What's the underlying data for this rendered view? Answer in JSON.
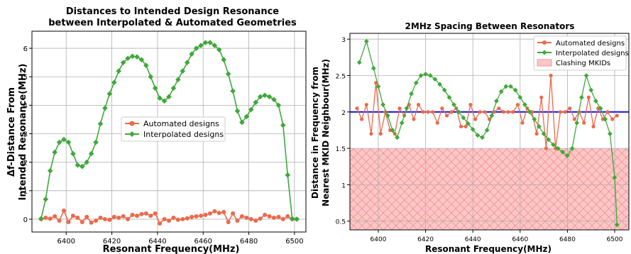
{
  "chart_data": [
    {
      "type": "line",
      "title": "Distances to Intended Design Resonance",
      "subtitle": "between Interpolated & Automated Geometries",
      "xlabel": "Resonant Frequency(MHz)",
      "ylabel_line1": "Δf-Distance From",
      "ylabel_line2": "Intended Resonance(MHz)",
      "xlim": [
        6385,
        6505
      ],
      "ylim": [
        -0.45,
        6.6
      ],
      "xticks": [
        6400,
        6420,
        6440,
        6460,
        6480,
        6500
      ],
      "yticks": [
        0,
        1,
        2,
        3,
        4,
        5,
        6
      ],
      "grid": true,
      "legend_position": "center",
      "series": [
        {
          "name": "Automated designs",
          "color": "#ea6a4b",
          "marker": "circle",
          "x": [
            6389,
            6391,
            6393,
            6395,
            6397,
            6399,
            6401,
            6403,
            6405,
            6407,
            6409,
            6411,
            6413,
            6415,
            6417,
            6419,
            6421,
            6423,
            6425,
            6427,
            6429,
            6431,
            6433,
            6435,
            6437,
            6439,
            6441,
            6443,
            6445,
            6447,
            6449,
            6451,
            6453,
            6455,
            6457,
            6459,
            6461,
            6463,
            6465,
            6467,
            6469,
            6471,
            6473,
            6475,
            6477,
            6479,
            6481,
            6483,
            6485,
            6487,
            6489,
            6491,
            6493,
            6495,
            6497,
            6499,
            6501
          ],
          "y": [
            0.0,
            0.05,
            0.02,
            0.1,
            -0.05,
            0.3,
            -0.1,
            0.12,
            0.05,
            -0.1,
            0.08,
            -0.12,
            -0.05,
            0.05,
            0.0,
            -0.02,
            0.08,
            0.05,
            0.1,
            0.0,
            0.15,
            0.12,
            0.18,
            0.2,
            0.12,
            0.2,
            -0.15,
            0.0,
            -0.05,
            0.05,
            -0.02,
            0.0,
            0.03,
            0.08,
            0.1,
            0.12,
            0.15,
            0.2,
            0.28,
            0.22,
            0.25,
            -0.1,
            0.2,
            -0.05,
            0.1,
            0.05,
            0.0,
            -0.05,
            0.02,
            0.15,
            0.1,
            0.05,
            0.08,
            0.0,
            0.1,
            0.0,
            0.0
          ]
        },
        {
          "name": "Interpolated designs",
          "color": "#3fa83a",
          "marker": "diamond",
          "x": [
            6389,
            6391,
            6393,
            6395,
            6397,
            6399,
            6401,
            6403,
            6405,
            6407,
            6409,
            6411,
            6413,
            6415,
            6417,
            6419,
            6421,
            6423,
            6425,
            6427,
            6429,
            6431,
            6433,
            6435,
            6437,
            6439,
            6441,
            6443,
            6445,
            6447,
            6449,
            6451,
            6453,
            6455,
            6457,
            6459,
            6461,
            6463,
            6465,
            6467,
            6469,
            6471,
            6473,
            6475,
            6477,
            6479,
            6481,
            6483,
            6485,
            6487,
            6489,
            6491,
            6493,
            6495,
            6497,
            6499,
            6501
          ],
          "y": [
            0.02,
            0.7,
            1.7,
            2.35,
            2.7,
            2.8,
            2.7,
            2.3,
            1.9,
            1.85,
            2.0,
            2.3,
            2.7,
            3.35,
            3.9,
            4.4,
            4.8,
            5.2,
            5.5,
            5.65,
            5.72,
            5.7,
            5.6,
            5.4,
            5.0,
            4.6,
            4.25,
            4.15,
            4.3,
            4.6,
            4.9,
            5.2,
            5.5,
            5.8,
            6.0,
            6.1,
            6.2,
            6.2,
            6.1,
            5.95,
            5.6,
            5.1,
            4.5,
            3.8,
            3.4,
            3.6,
            3.85,
            4.1,
            4.3,
            4.35,
            4.3,
            4.2,
            4.0,
            3.3,
            1.55,
            0.02,
            0.0
          ]
        }
      ]
    },
    {
      "type": "line",
      "title": "2MHz Spacing Between Resonators",
      "xlabel": "Resonant Frequency(MHz)",
      "ylabel_line1": "Distance in Frequency from",
      "ylabel_line2": "Nearest MKID Neighbour(MHz)",
      "xlim": [
        6388,
        6506
      ],
      "ylim": [
        0.38,
        3.08
      ],
      "xticks": [
        6400,
        6420,
        6440,
        6460,
        6480,
        6500
      ],
      "yticks": [
        0.5,
        1.0,
        1.5,
        2.0,
        2.5,
        3.0
      ],
      "grid": true,
      "legend_position": "top-right",
      "reference_line": {
        "y": 2.0,
        "color": "#1010e0"
      },
      "shaded_region": {
        "name": "Clashing MKIDs",
        "y_min": 0.38,
        "y_max": 1.5,
        "color": "#ffc6c6",
        "hatch_color": "#e58a8a"
      },
      "series": [
        {
          "name": "Automated designs",
          "color": "#ea6a4b",
          "marker": "circle",
          "x": [
            6391,
            6393,
            6395,
            6397,
            6399,
            6401,
            6403,
            6405,
            6407,
            6409,
            6411,
            6413,
            6415,
            6417,
            6419,
            6421,
            6423,
            6425,
            6427,
            6429,
            6431,
            6433,
            6435,
            6437,
            6439,
            6441,
            6443,
            6445,
            6447,
            6449,
            6451,
            6453,
            6455,
            6457,
            6459,
            6461,
            6463,
            6465,
            6467,
            6469,
            6471,
            6473,
            6475,
            6477,
            6479,
            6481,
            6483,
            6485,
            6487,
            6489,
            6491,
            6493,
            6495,
            6497,
            6499,
            6501
          ],
          "y": [
            2.05,
            1.9,
            2.1,
            1.7,
            2.4,
            1.7,
            2.0,
            1.75,
            1.7,
            2.05,
            1.95,
            2.1,
            1.9,
            2.1,
            2.0,
            2.0,
            2.0,
            1.85,
            2.05,
            1.95,
            2.0,
            2.05,
            1.8,
            1.8,
            2.1,
            1.9,
            2.0,
            2.0,
            1.9,
            2.0,
            2.05,
            2.0,
            2.0,
            2.0,
            2.1,
            1.85,
            2.05,
            2.0,
            1.7,
            2.2,
            1.5,
            2.5,
            1.5,
            2.0,
            2.0,
            2.05,
            1.9,
            2.0,
            1.85,
            2.2,
            1.8,
            2.05,
            1.9,
            2.0,
            1.9,
            1.95
          ]
        },
        {
          "name": "Interpolated designs",
          "color": "#3fa83a",
          "marker": "diamond",
          "x": [
            6392,
            6395,
            6398,
            6400,
            6402,
            6404,
            6406,
            6408,
            6410,
            6412,
            6414,
            6416,
            6418,
            6420,
            6422,
            6424,
            6426,
            6428,
            6430,
            6432,
            6434,
            6436,
            6438,
            6440,
            6442,
            6444,
            6446,
            6448,
            6450,
            6452,
            6454,
            6456,
            6458,
            6460,
            6462,
            6464,
            6466,
            6468,
            6470,
            6472,
            6474,
            6476,
            6478,
            6480,
            6482,
            6484,
            6486,
            6488,
            6490,
            6492,
            6494,
            6496,
            6498,
            6500,
            6501
          ],
          "y": [
            2.68,
            2.97,
            2.6,
            2.35,
            2.1,
            1.95,
            1.75,
            1.65,
            1.85,
            2.05,
            2.25,
            2.4,
            2.5,
            2.52,
            2.5,
            2.45,
            2.38,
            2.3,
            2.2,
            2.1,
            2.0,
            1.92,
            1.84,
            1.76,
            1.68,
            1.65,
            1.75,
            1.95,
            2.15,
            2.28,
            2.35,
            2.35,
            2.3,
            2.2,
            2.1,
            2.0,
            1.9,
            1.8,
            1.7,
            1.62,
            1.55,
            1.5,
            1.45,
            1.4,
            1.5,
            1.85,
            2.2,
            2.5,
            2.3,
            2.15,
            2.05,
            1.9,
            1.7,
            1.1,
            0.45
          ]
        }
      ]
    }
  ]
}
